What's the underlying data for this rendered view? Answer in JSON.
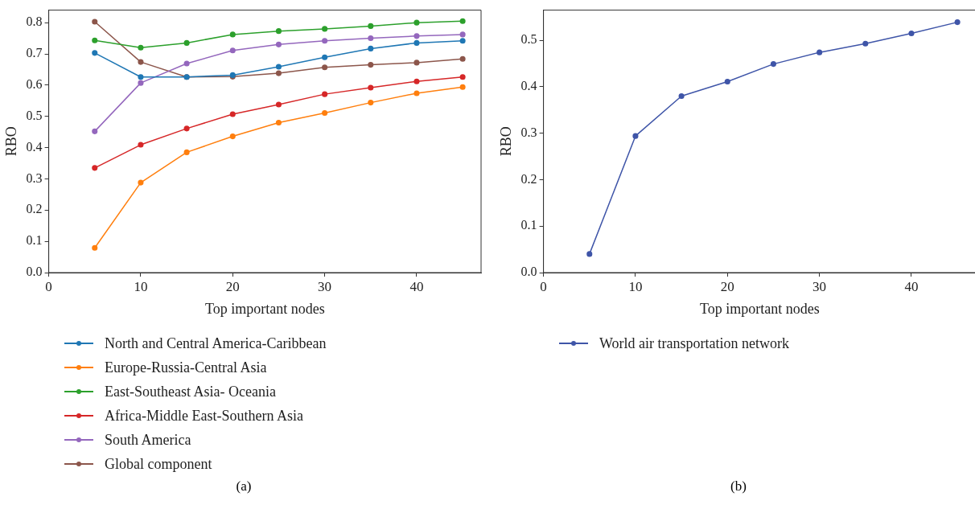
{
  "chart_data": [
    {
      "type": "line",
      "xlabel": "Top important nodes",
      "ylabel": "RBO",
      "x": [
        5,
        10,
        15,
        20,
        25,
        30,
        35,
        40,
        45
      ],
      "xlim": [
        0,
        47
      ],
      "xticks": [
        0,
        10,
        20,
        30,
        40
      ],
      "ylim": [
        0,
        0.84
      ],
      "yticks": [
        {
          "value": 0,
          "label": "0.0"
        },
        0.1,
        0.2,
        0.3,
        0.4,
        0.5,
        0.6,
        0.7,
        0.8
      ],
      "marker": "circle",
      "legend": "bottom",
      "grid": false,
      "annotations": [
        "(a)"
      ],
      "series": [
        {
          "name": "North and Central America-Caribbean",
          "color": "#1f77b4",
          "values": [
            0.703,
            0.626,
            0.626,
            0.632,
            0.659,
            0.689,
            0.717,
            0.735,
            0.742
          ]
        },
        {
          "name": "Europe-Russia-Central Asia",
          "color": "#ff7f0e",
          "values": [
            0.079,
            0.288,
            0.385,
            0.436,
            0.48,
            0.511,
            0.544,
            0.574,
            0.594
          ]
        },
        {
          "name": "East-Southeast Asia- Oceania",
          "color": "#2ca02c",
          "values": [
            0.743,
            0.72,
            0.735,
            0.762,
            0.773,
            0.78,
            0.789,
            0.8,
            0.805
          ]
        },
        {
          "name": "Africa-Middle East-Southern Asia",
          "color": "#d62728",
          "values": [
            0.335,
            0.409,
            0.461,
            0.507,
            0.538,
            0.571,
            0.592,
            0.612,
            0.626
          ]
        },
        {
          "name": "South America",
          "color": "#9467bd",
          "values": [
            0.452,
            0.607,
            0.669,
            0.711,
            0.73,
            0.742,
            0.75,
            0.757,
            0.762
          ]
        },
        {
          "name": "Global component",
          "color": "#8c564b",
          "values": [
            0.803,
            0.674,
            0.626,
            0.627,
            0.638,
            0.657,
            0.665,
            0.672,
            0.684
          ]
        }
      ]
    },
    {
      "type": "line",
      "xlabel": "Top important nodes",
      "ylabel": "RBO",
      "x": [
        5,
        10,
        15,
        20,
        25,
        30,
        35,
        40,
        45
      ],
      "xlim": [
        0,
        47
      ],
      "xticks": [
        0,
        10,
        20,
        30,
        40
      ],
      "ylim": [
        0,
        0.565
      ],
      "yticks": [
        {
          "value": 0,
          "label": "0.0"
        },
        0.1,
        0.2,
        0.3,
        0.4,
        0.5
      ],
      "marker": "circle",
      "legend": "bottom",
      "grid": false,
      "annotations": [
        "(b)"
      ],
      "series": [
        {
          "name": "World air transportation network",
          "color": "#3f55a8",
          "values": [
            0.04,
            0.294,
            0.38,
            0.411,
            0.449,
            0.474,
            0.493,
            0.515,
            0.539
          ]
        }
      ]
    }
  ]
}
